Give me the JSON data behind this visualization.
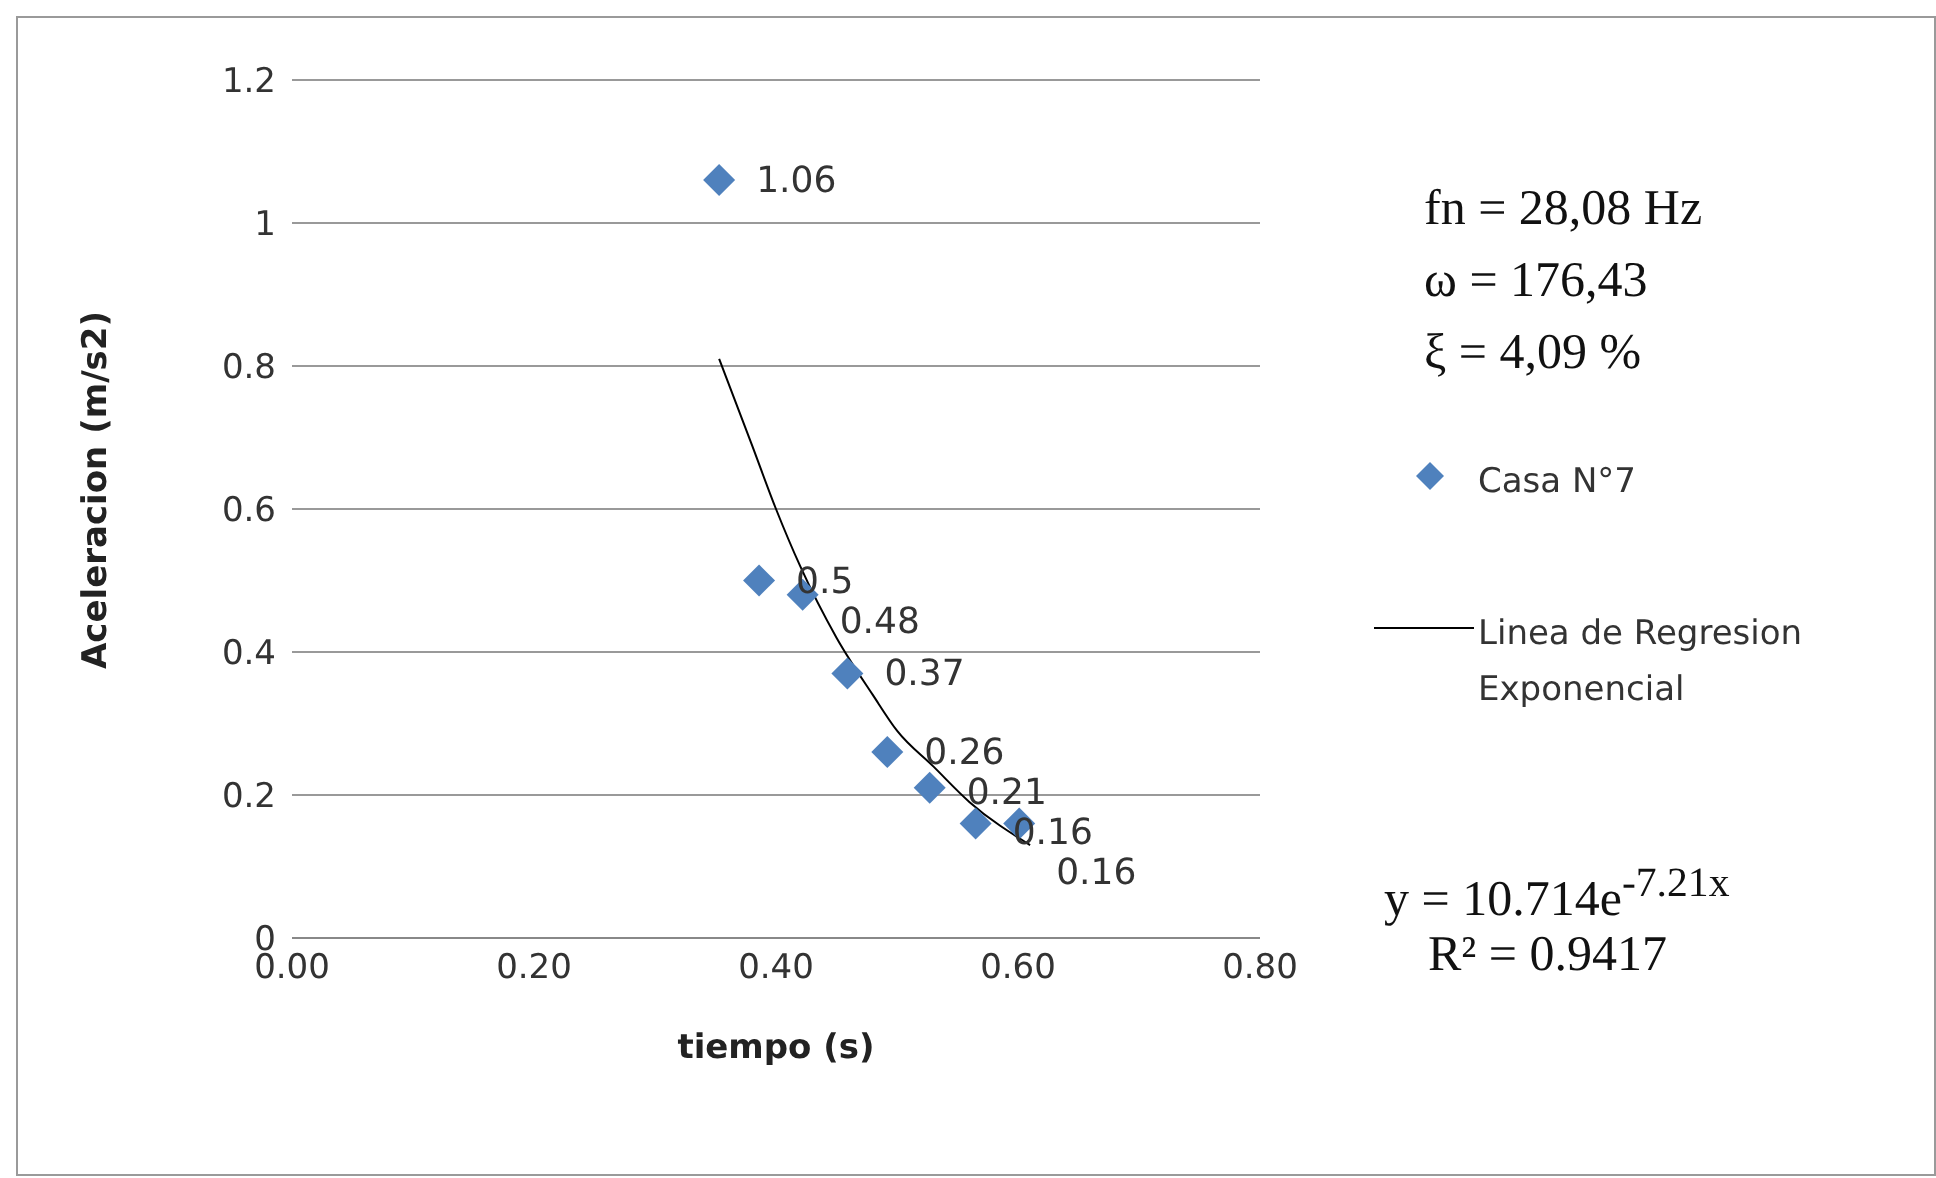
{
  "chart_data": {
    "type": "scatter",
    "xlabel": "tiempo (s)",
    "ylabel": "Aceleracion (m/s2)",
    "series": [
      {
        "name": "Casa N°7",
        "color": "#4f81bd",
        "marker": "diamond",
        "x": [
          0.353,
          0.386,
          0.422,
          0.459,
          0.492,
          0.527,
          0.565,
          0.601
        ],
        "values": [
          1.06,
          0.5,
          0.48,
          0.37,
          0.26,
          0.21,
          0.16,
          0.16
        ],
        "value_labels": [
          "1.06",
          "0.5",
          "0.48",
          "0.37",
          "0.26",
          "0.21",
          "0.16",
          "0.16"
        ]
      },
      {
        "name": "Linea de Regresion Exponencial",
        "type": "line",
        "color": "#000000",
        "marker": "none",
        "line_style": "solid",
        "x": [
          0.353,
          0.38,
          0.4,
          0.42,
          0.45,
          0.48,
          0.5,
          0.53,
          0.56,
          0.61
        ],
        "values": [
          0.81,
          0.69,
          0.6,
          0.52,
          0.42,
          0.34,
          0.29,
          0.24,
          0.19,
          0.13
        ]
      }
    ],
    "xlim": [
      0,
      0.8
    ],
    "xticks": [
      {
        "value": 0,
        "label": "0.00"
      },
      {
        "value": 0.2,
        "label": "0.20"
      },
      {
        "value": 0.4,
        "label": "0.40"
      },
      {
        "value": 0.6,
        "label": "0.60"
      },
      {
        "value": 0.8,
        "label": "0.80"
      }
    ],
    "ylim": [
      0,
      1.2
    ],
    "yticks": [
      0,
      0.2,
      0.4,
      0.6,
      0.8,
      1,
      1.2
    ],
    "grid": "y",
    "legend": "right",
    "annotations": [
      "fn = 28,08 Hz",
      "ω = 176,43",
      "ξ = 4,09 %",
      "y = 10.714e$^{-7.21x}$",
      "R² = 0.9417"
    ]
  }
}
